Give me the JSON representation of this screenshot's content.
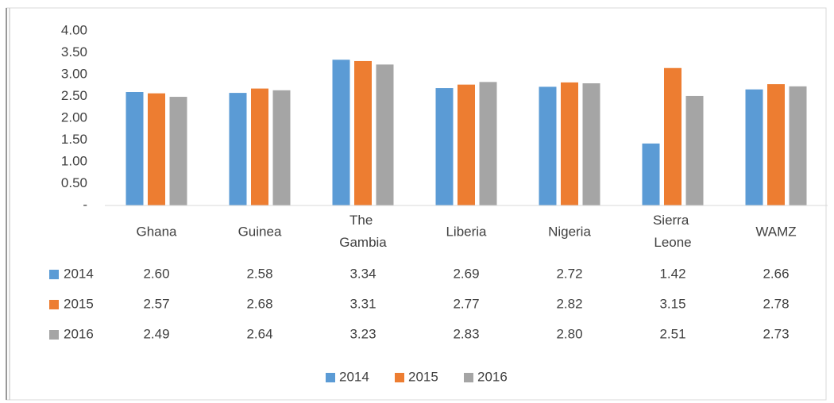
{
  "chart_data": {
    "type": "bar",
    "categories": [
      "Ghana",
      "Guinea",
      "The Gambia",
      "Liberia",
      "Nigeria",
      "Sierra Leone",
      "WAMZ"
    ],
    "series": [
      {
        "name": "2014",
        "color": "#5b9bd5",
        "values": [
          2.6,
          2.58,
          3.34,
          2.69,
          2.72,
          1.42,
          2.66
        ],
        "value_labels": [
          "2.60",
          "2.58",
          "3.34",
          "2.69",
          "2.72",
          "1.42",
          "2.66"
        ]
      },
      {
        "name": "2015",
        "color": "#ed7d31",
        "values": [
          2.57,
          2.68,
          3.31,
          2.77,
          2.82,
          3.15,
          2.78
        ],
        "value_labels": [
          "2.57",
          "2.68",
          "3.31",
          "2.77",
          "2.82",
          "3.15",
          "2.78"
        ]
      },
      {
        "name": "2016",
        "color": "#a5a5a5",
        "values": [
          2.49,
          2.64,
          3.23,
          2.83,
          2.8,
          2.51,
          2.73
        ],
        "value_labels": [
          "2.49",
          "2.64",
          "3.23",
          "2.83",
          "2.80",
          "2.51",
          "2.73"
        ]
      }
    ],
    "ylim": [
      0,
      4
    ],
    "yticks": [
      {
        "value": 0,
        "label": "-"
      },
      {
        "value": 0.5,
        "label": "0.50"
      },
      {
        "value": 1,
        "label": "1.00"
      },
      {
        "value": 1.5,
        "label": "1.50"
      },
      {
        "value": 2,
        "label": "2.00"
      },
      {
        "value": 2.5,
        "label": "2.50"
      },
      {
        "value": 3,
        "label": "3.00"
      },
      {
        "value": 3.5,
        "label": "3.50"
      },
      {
        "value": 4,
        "label": "4.00"
      }
    ],
    "grid": false,
    "legend": "bottom",
    "data_table": true
  }
}
